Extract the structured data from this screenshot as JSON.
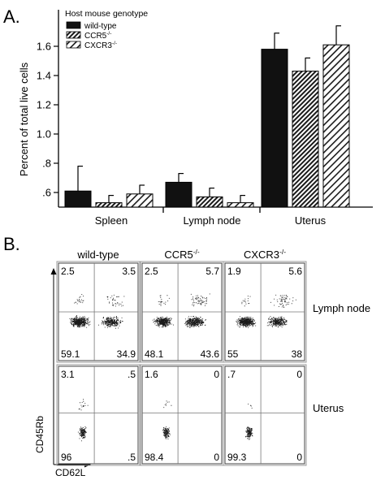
{
  "panel_a_label": "A.",
  "panel_b_label": "B.",
  "colors": {
    "wild_type": "#111111",
    "axis": "#000000",
    "background": "#ffffff"
  },
  "chart_data": [
    {
      "type": "bar",
      "ylabel": "Percent of total live cells",
      "xlabel": "",
      "categories": [
        "Spleen",
        "Lymph node",
        "Uterus"
      ],
      "yticks": [
        ".6",
        ".8",
        "1.0",
        "1.2",
        "1.4",
        "1.6"
      ],
      "ylim": [
        0.5,
        1.75
      ],
      "legend_title": "Host mouse genotype",
      "legend_position": "top-left",
      "series": [
        {
          "name": "wild-type",
          "fill": "solid black",
          "values": [
            0.61,
            0.67,
            1.58
          ],
          "errors": [
            0.17,
            0.06,
            0.11
          ]
        },
        {
          "name": "CCR5",
          "superscript": "-/-",
          "fill": "dense diagonal hatch",
          "values": [
            0.53,
            0.57,
            1.43
          ],
          "errors": [
            0.05,
            0.06,
            0.09
          ]
        },
        {
          "name": "CXCR3",
          "superscript": "-/-",
          "fill": "sparse diagonal hatch",
          "values": [
            0.59,
            0.53,
            1.61
          ],
          "errors": [
            0.06,
            0.05,
            0.13
          ]
        }
      ]
    },
    {
      "type": "scatter",
      "xlabel": "CD62L",
      "ylabel": "CD45Rb",
      "columns": [
        {
          "name": "wild-type"
        },
        {
          "name": "CCR5",
          "superscript": "-/-"
        },
        {
          "name": "CXCR3",
          "superscript": "-/-"
        }
      ],
      "rows": [
        {
          "name": "Lymph node",
          "quadrants": [
            {
              "ul": "2.5",
              "ur": "3.5",
              "ll": "59.1",
              "lr": "34.9"
            },
            {
              "ul": "2.5",
              "ur": "5.7",
              "ll": "48.1",
              "lr": "43.6"
            },
            {
              "ul": "1.9",
              "ur": "5.6",
              "ll": "55",
              "lr": "38"
            }
          ]
        },
        {
          "name": "Uterus",
          "quadrants": [
            {
              "ul": "3.1",
              "ur": ".5",
              "ll": "96",
              "lr": ".5"
            },
            {
              "ul": "1.6",
              "ur": "0",
              "ll": "98.4",
              "lr": "0"
            },
            {
              "ul": ".7",
              "ur": "0",
              "ll": "99.3",
              "lr": "0"
            }
          ]
        }
      ]
    }
  ]
}
